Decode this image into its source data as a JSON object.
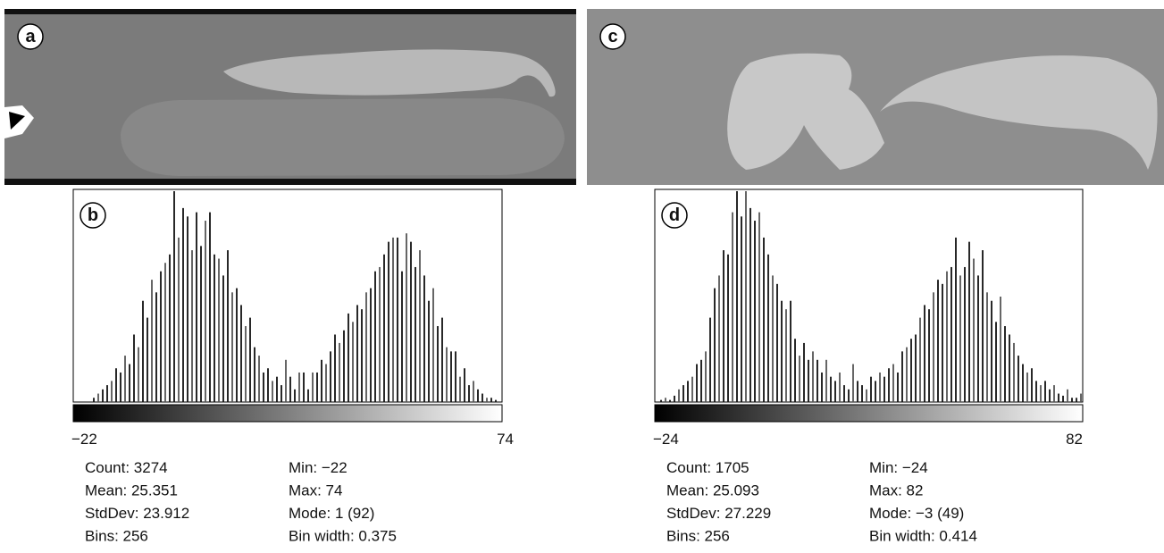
{
  "panels": [
    {
      "label": "a"
    },
    {
      "label": "c"
    }
  ],
  "histograms": [
    {
      "label": "b",
      "bars": [
        2,
        4,
        6,
        8,
        10,
        16,
        14,
        22,
        18,
        32,
        26,
        48,
        40,
        58,
        52,
        62,
        66,
        70,
        100,
        78,
        92,
        88,
        72,
        90,
        74,
        86,
        90,
        70,
        68,
        60,
        72,
        52,
        54,
        46,
        36,
        40,
        26,
        22,
        14,
        16,
        10,
        12,
        8,
        20,
        12,
        6,
        14,
        14,
        6,
        14,
        14,
        20,
        18,
        24,
        32,
        28,
        34,
        42,
        38,
        46,
        44,
        52,
        54,
        62,
        64,
        70,
        76,
        78,
        78,
        62,
        80,
        76,
        64,
        72,
        60,
        48,
        54,
        36,
        40,
        26,
        24,
        24,
        12,
        16,
        8,
        10,
        6,
        4,
        2,
        2,
        1
      ],
      "min_label": "−22",
      "max_label": "74",
      "stats_left": [
        "Count: 3274",
        "Mean: 25.351",
        "StdDev: 23.912",
        "Bins: 256"
      ],
      "stats_right": [
        "Min: −22",
        "Max: 74",
        "Mode: 1 (92)",
        "Bin width: 0.375"
      ]
    },
    {
      "label": "d",
      "bars": [
        1,
        2,
        1,
        3,
        6,
        8,
        10,
        12,
        18,
        20,
        24,
        40,
        54,
        60,
        72,
        70,
        90,
        100,
        88,
        100,
        92,
        86,
        90,
        78,
        70,
        60,
        56,
        48,
        44,
        48,
        30,
        22,
        28,
        20,
        24,
        20,
        14,
        20,
        12,
        10,
        14,
        8,
        6,
        18,
        10,
        8,
        6,
        12,
        10,
        14,
        12,
        16,
        18,
        14,
        24,
        26,
        30,
        32,
        40,
        46,
        44,
        52,
        58,
        56,
        62,
        64,
        78,
        60,
        64,
        76,
        68,
        60,
        72,
        52,
        48,
        38,
        50,
        36,
        32,
        28,
        22,
        18,
        14,
        16,
        10,
        8,
        10,
        6,
        8,
        4,
        3,
        6,
        2,
        2,
        4
      ],
      "min_label": "−24",
      "max_label": "82",
      "stats_left": [
        "Count: 1705",
        "Mean: 25.093",
        "StdDev: 27.229",
        "Bins: 256"
      ],
      "stats_right": [
        "Min: −24",
        "Max: 82",
        "Mode: −3 (49)",
        "Bin width: 0.414"
      ]
    }
  ]
}
